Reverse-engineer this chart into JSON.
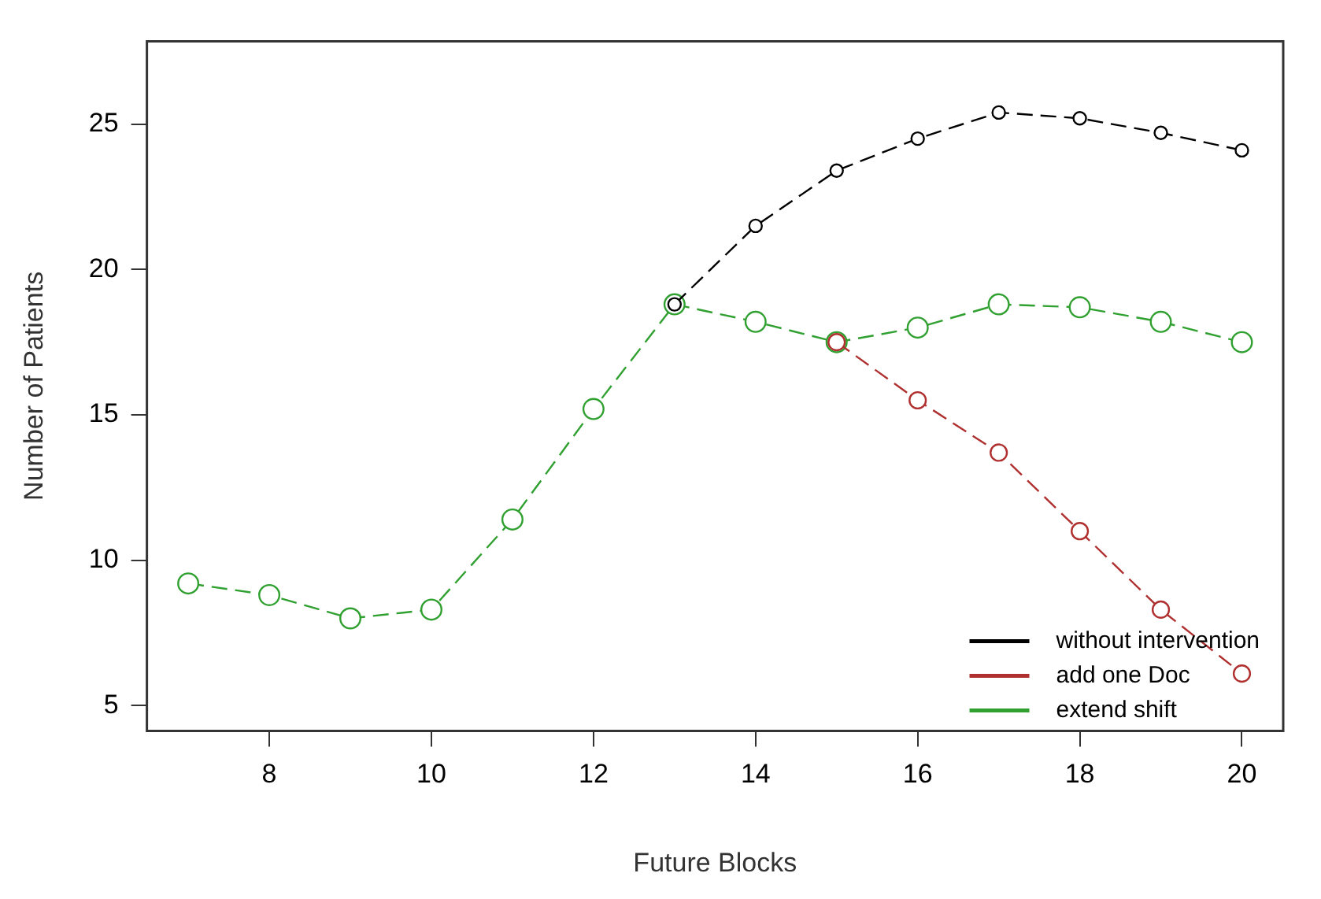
{
  "chart_data": {
    "type": "line",
    "xlabel": "Future Blocks",
    "ylabel": "Number of Patients",
    "xlim": [
      6.49,
      20.51
    ],
    "ylim": [
      4.13,
      27.85
    ],
    "xticks": [
      8,
      10,
      12,
      14,
      16,
      18,
      20
    ],
    "yticks": [
      5,
      10,
      15,
      20,
      25
    ],
    "grid": false,
    "legend": "bottom right",
    "marker": "circle",
    "line_style": "dashed",
    "series": [
      {
        "name": "without intervention",
        "color": "#000000",
        "x": [
          13,
          14,
          15,
          16,
          17,
          18,
          19,
          20
        ],
        "values": [
          18.8,
          21.5,
          23.4,
          24.5,
          25.4,
          25.2,
          24.7,
          24.1
        ]
      },
      {
        "name": "add one Doc",
        "color": "#b03030",
        "x": [
          15,
          16,
          17,
          18,
          19,
          20
        ],
        "values": [
          17.5,
          15.5,
          13.7,
          11.0,
          8.3,
          6.1
        ]
      },
      {
        "name": "extend shift",
        "color": "#30a030",
        "x": [
          7,
          8,
          9,
          10,
          11,
          12,
          13,
          14,
          15,
          16,
          17,
          18,
          19,
          20
        ],
        "values": [
          9.2,
          8.8,
          8.0,
          8.3,
          11.4,
          15.2,
          18.8,
          18.2,
          17.5,
          18.0,
          18.8,
          18.7,
          18.2,
          17.5
        ]
      }
    ]
  }
}
